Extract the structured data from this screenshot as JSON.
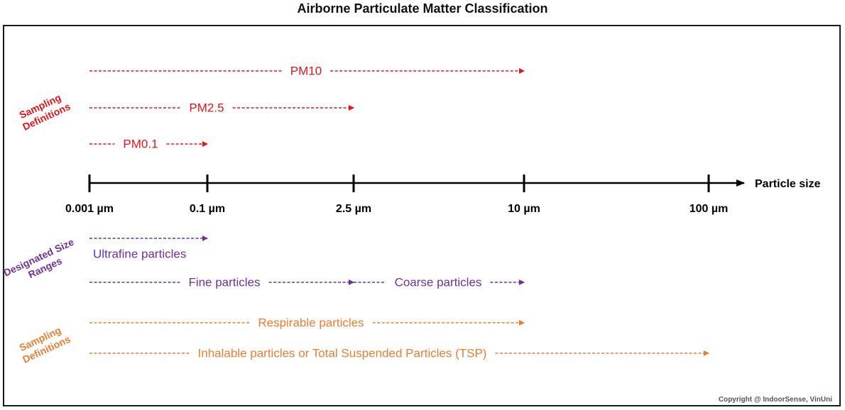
{
  "title": "Airborne Particulate Matter Classification",
  "axis": {
    "label": "Particle size",
    "ticks": [
      "0.001 µm",
      "0.1 µm",
      "2.5 µm",
      "10 µm",
      "100 µm"
    ]
  },
  "groups": [
    {
      "label": "Sampling Definitions",
      "color": "#e8141b"
    },
    {
      "label": "Designated Size Ranges",
      "color": "#7030a0"
    },
    {
      "label": "Sampling Definitions",
      "color": "#ed7d31"
    }
  ],
  "ranges": [
    {
      "label": "PM10",
      "from": "0.001 µm",
      "to": "10 µm",
      "group": 0
    },
    {
      "label": "PM2.5",
      "from": "0.001 µm",
      "to": "2.5 µm",
      "group": 0
    },
    {
      "label": "PM0.1",
      "from": "0.001 µm",
      "to": "0.1 µm",
      "group": 0
    },
    {
      "label": "Ultrafine particles",
      "from": "0.001 µm",
      "to": "0.1 µm",
      "group": 1
    },
    {
      "label": "Fine particles",
      "from": "0.001 µm",
      "to": "2.5 µm",
      "group": 1
    },
    {
      "label": "Coarse particles",
      "from": "2.5 µm",
      "to": "10 µm",
      "group": 1
    },
    {
      "label": "Respirable particles",
      "from": "0.001 µm",
      "to": "10 µm",
      "group": 2
    },
    {
      "label": "Inhalable particles or Total Suspended Particles (TSP)",
      "from": "0.001 µm",
      "to": "100 µm",
      "group": 2
    }
  ],
  "copyright": "Copyright @ IndoorSense, VinUni"
}
